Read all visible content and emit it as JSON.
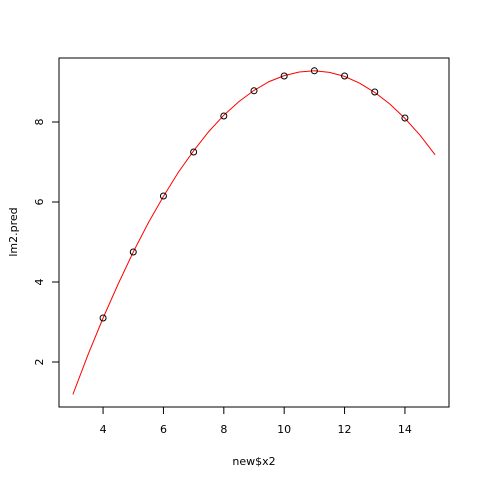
{
  "chart_data": {
    "type": "scatter",
    "xlabel": "new$x2",
    "ylabel": "lm2.pred",
    "xlim": [
      2.54,
      15.46
    ],
    "ylim": [
      0.875,
      9.6
    ],
    "xticks": [
      4,
      6,
      8,
      10,
      12,
      14
    ],
    "yticks": [
      2,
      4,
      6,
      8
    ],
    "points": {
      "x": [
        4,
        5,
        6,
        7,
        8,
        9,
        10,
        11,
        12,
        13,
        14
      ],
      "values": [
        3.1,
        4.75,
        6.15,
        7.25,
        8.15,
        8.78,
        9.15,
        9.28,
        9.15,
        8.75,
        8.1
      ],
      "color": "#000000"
    },
    "line": {
      "x": [
        3,
        3.5,
        4,
        4.5,
        5,
        5.5,
        6,
        6.5,
        7,
        7.5,
        8,
        8.5,
        9,
        9.5,
        10,
        10.5,
        11,
        11.5,
        12,
        12.5,
        13,
        13.5,
        14,
        14.5,
        15
      ],
      "values": [
        1.19,
        2.18,
        3.1,
        3.95,
        4.75,
        5.48,
        6.14,
        6.75,
        7.28,
        7.76,
        8.17,
        8.51,
        8.79,
        9.01,
        9.16,
        9.25,
        9.28,
        9.24,
        9.14,
        8.97,
        8.74,
        8.45,
        8.09,
        7.67,
        7.18
      ],
      "color": "#ff0000"
    }
  }
}
